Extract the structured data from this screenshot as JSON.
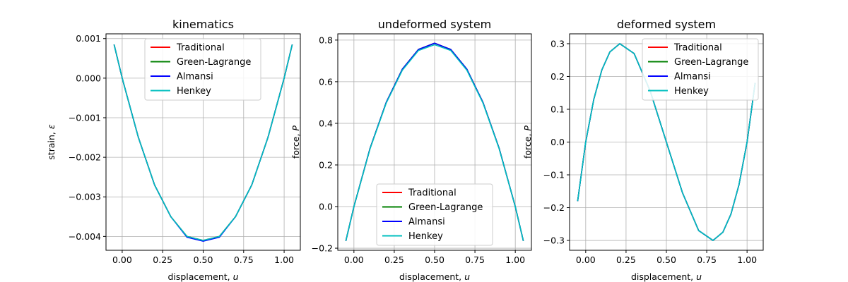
{
  "figure": {
    "background": "#ffffff"
  },
  "chart_data": [
    {
      "type": "line",
      "title": "kinematics",
      "xlabel": "displacement, u",
      "ylabel": "strain, ε",
      "xlim": [
        -0.1,
        1.1
      ],
      "ylim": [
        -0.00435,
        0.00112
      ],
      "x_ticks": [
        0.0,
        0.25,
        0.5,
        0.75,
        1.0
      ],
      "x_tick_labels": [
        "0.00",
        "0.25",
        "0.50",
        "0.75",
        "1.00"
      ],
      "y_ticks": [
        0.001,
        0.0,
        -0.001,
        -0.002,
        -0.003,
        -0.004
      ],
      "y_tick_labels": [
        "0.001",
        "0.000",
        "−0.001",
        "−0.002",
        "−0.003",
        "−0.004"
      ],
      "grid": true,
      "legend_position": "top-center",
      "x": [
        -0.05,
        0.0,
        0.1,
        0.2,
        0.3,
        0.4,
        0.5,
        0.6,
        0.7,
        0.8,
        0.9,
        1.0,
        1.05
      ],
      "series": [
        {
          "name": "Traditional",
          "color": "#ff0000",
          "values": [
            0.00085,
            0.0,
            -0.0015,
            -0.0027,
            -0.0035,
            -0.004,
            -0.0041,
            -0.004,
            -0.0035,
            -0.0027,
            -0.0015,
            0.0,
            0.00085
          ]
        },
        {
          "name": "Green-Lagrange",
          "color": "#008000",
          "values": [
            0.00085,
            0.0,
            -0.0015,
            -0.0027,
            -0.0035,
            -0.004,
            -0.0041,
            -0.004,
            -0.0035,
            -0.0027,
            -0.0015,
            0.0,
            0.00085
          ]
        },
        {
          "name": "Almansi",
          "color": "#0000ff",
          "values": [
            0.00085,
            0.0,
            -0.0015,
            -0.0027,
            -0.0035,
            -0.00402,
            -0.00412,
            -0.00402,
            -0.0035,
            -0.0027,
            -0.0015,
            0.0,
            0.00085
          ]
        },
        {
          "name": "Henkey",
          "color": "#00bfbf",
          "values": [
            0.00085,
            0.0,
            -0.0015,
            -0.0027,
            -0.0035,
            -0.004,
            -0.0041,
            -0.004,
            -0.0035,
            -0.0027,
            -0.0015,
            0.0,
            0.00085
          ]
        }
      ]
    },
    {
      "type": "line",
      "title": "undeformed system",
      "xlabel": "displacement, u",
      "ylabel": "force, P",
      "xlim": [
        -0.1,
        1.1
      ],
      "ylim": [
        -0.21,
        0.83
      ],
      "x_ticks": [
        0.0,
        0.25,
        0.5,
        0.75,
        1.0
      ],
      "x_tick_labels": [
        "0.00",
        "0.25",
        "0.50",
        "0.75",
        "1.00"
      ],
      "y_ticks": [
        0.8,
        0.6,
        0.4,
        0.2,
        0.0,
        -0.2
      ],
      "y_tick_labels": [
        "0.8",
        "0.6",
        "0.4",
        "0.2",
        "0.0",
        "−0.2"
      ],
      "grid": true,
      "legend_position": "bottom-center",
      "x": [
        -0.05,
        0.0,
        0.1,
        0.2,
        0.3,
        0.4,
        0.5,
        0.6,
        0.7,
        0.8,
        0.9,
        1.0,
        1.05
      ],
      "series": [
        {
          "name": "Traditional",
          "color": "#ff0000",
          "values": [
            -0.165,
            0.0,
            0.28,
            0.5,
            0.66,
            0.755,
            0.785,
            0.755,
            0.66,
            0.5,
            0.28,
            0.0,
            -0.165
          ]
        },
        {
          "name": "Green-Lagrange",
          "color": "#008000",
          "values": [
            -0.165,
            0.0,
            0.28,
            0.5,
            0.66,
            0.755,
            0.785,
            0.755,
            0.66,
            0.5,
            0.28,
            0.0,
            -0.165
          ]
        },
        {
          "name": "Almansi",
          "color": "#0000ff",
          "values": [
            -0.165,
            0.0,
            0.28,
            0.5,
            0.66,
            0.755,
            0.785,
            0.755,
            0.66,
            0.5,
            0.28,
            0.0,
            -0.165
          ]
        },
        {
          "name": "Henkey",
          "color": "#00bfbf",
          "values": [
            -0.165,
            0.0,
            0.278,
            0.497,
            0.655,
            0.75,
            0.778,
            0.75,
            0.655,
            0.497,
            0.278,
            0.0,
            -0.165
          ]
        }
      ]
    },
    {
      "type": "line",
      "title": "deformed system",
      "xlabel": "displacement, u",
      "ylabel": "force, P",
      "xlim": [
        -0.1,
        1.1
      ],
      "ylim": [
        -0.33,
        0.33
      ],
      "x_ticks": [
        0.0,
        0.25,
        0.5,
        0.75,
        1.0
      ],
      "x_tick_labels": [
        "0.00",
        "0.25",
        "0.50",
        "0.75",
        "1.00"
      ],
      "y_ticks": [
        0.3,
        0.2,
        0.1,
        0.0,
        -0.1,
        -0.2,
        -0.3
      ],
      "y_tick_labels": [
        "0.3",
        "0.2",
        "0.1",
        "0.0",
        "−0.1",
        "−0.2",
        "−0.3"
      ],
      "grid": true,
      "legend_position": "top-right",
      "x": [
        -0.05,
        0.0,
        0.05,
        0.1,
        0.15,
        0.211,
        0.3,
        0.4,
        0.5,
        0.6,
        0.7,
        0.789,
        0.85,
        0.9,
        0.95,
        1.0,
        1.05
      ],
      "series": [
        {
          "name": "Traditional",
          "color": "#ff0000",
          "values": [
            -0.18,
            0.0,
            0.13,
            0.22,
            0.275,
            0.3,
            0.27,
            0.155,
            0.0,
            -0.155,
            -0.27,
            -0.3,
            -0.275,
            -0.22,
            -0.13,
            0.0,
            0.18
          ]
        },
        {
          "name": "Green-Lagrange",
          "color": "#008000",
          "values": [
            -0.18,
            0.0,
            0.13,
            0.22,
            0.275,
            0.3,
            0.27,
            0.155,
            0.0,
            -0.155,
            -0.27,
            -0.3,
            -0.275,
            -0.22,
            -0.13,
            0.0,
            0.18
          ]
        },
        {
          "name": "Almansi",
          "color": "#0000ff",
          "values": [
            -0.18,
            0.0,
            0.13,
            0.22,
            0.275,
            0.3,
            0.27,
            0.155,
            0.0,
            -0.155,
            -0.27,
            -0.3,
            -0.275,
            -0.22,
            -0.13,
            0.0,
            0.18
          ]
        },
        {
          "name": "Henkey",
          "color": "#00bfbf",
          "values": [
            -0.18,
            0.0,
            0.13,
            0.22,
            0.275,
            0.3,
            0.27,
            0.155,
            0.0,
            -0.155,
            -0.27,
            -0.3,
            -0.275,
            -0.22,
            -0.13,
            0.0,
            0.18
          ]
        }
      ]
    }
  ]
}
